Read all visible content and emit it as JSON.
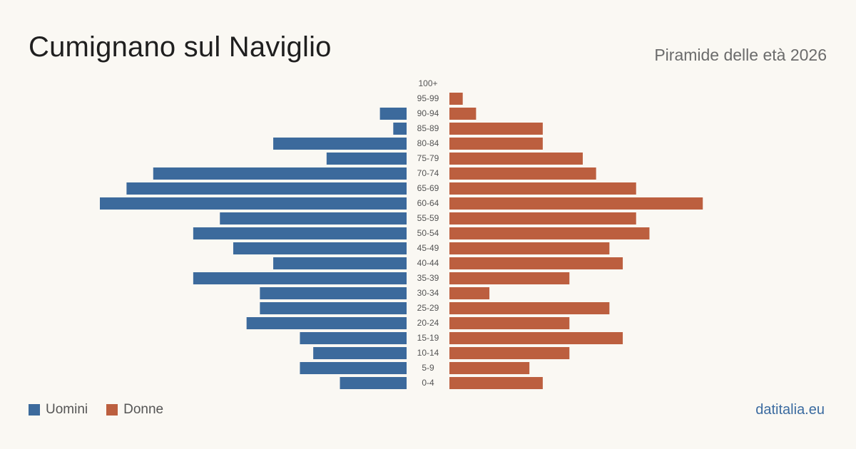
{
  "header": {
    "title": "Cumignano sul Naviglio",
    "subtitle": "Piramide delle età 2026"
  },
  "legend": {
    "men_label": "Uomini",
    "women_label": "Donne"
  },
  "source": "datitalia.eu",
  "colors": {
    "men": "#3c6a9c",
    "women": "#bc5f3f"
  },
  "chart_data": {
    "type": "bar",
    "orientation": "horizontal-pyramid",
    "categories": [
      "100+",
      "95-99",
      "90-94",
      "85-89",
      "80-84",
      "75-79",
      "70-74",
      "65-69",
      "60-64",
      "55-59",
      "50-54",
      "45-49",
      "40-44",
      "35-39",
      "30-34",
      "25-29",
      "20-24",
      "15-19",
      "10-14",
      "5-9",
      "0-4"
    ],
    "series": [
      {
        "name": "Uomini",
        "values": [
          0,
          0,
          2,
          1,
          10,
          6,
          19,
          21,
          23,
          14,
          16,
          13,
          10,
          16,
          11,
          11,
          12,
          8,
          7,
          8,
          5
        ]
      },
      {
        "name": "Donne",
        "values": [
          0,
          1,
          2,
          7,
          7,
          10,
          11,
          14,
          19,
          14,
          15,
          12,
          13,
          9,
          3,
          12,
          9,
          13,
          9,
          6,
          7
        ]
      }
    ],
    "xlim": [
      0,
      23
    ],
    "grid": false,
    "legend_position": "bottom-left"
  }
}
